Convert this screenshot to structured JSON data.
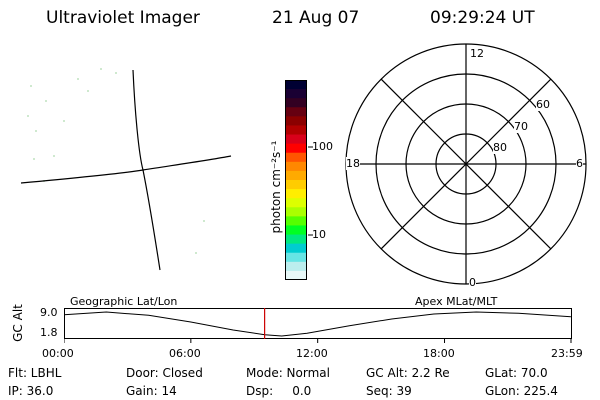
{
  "header": {
    "instrument": "Ultraviolet Imager",
    "date": "21 Aug 07",
    "time": "09:29:24 UT"
  },
  "colorbar": {
    "label": "photon cm⁻²s⁻¹",
    "tick_labels": [
      "100",
      "10"
    ],
    "colors": [
      "#000033",
      "#1a0033",
      "#330022",
      "#660011",
      "#8b0000",
      "#b20000",
      "#d9001a",
      "#ff0000",
      "#ff5500",
      "#ff8800",
      "#ffaa00",
      "#ffcc00",
      "#ffee00",
      "#ddff00",
      "#aaff00",
      "#55ff00",
      "#00ff22",
      "#00e880",
      "#00ccd0",
      "#66e5e5",
      "#bbeeee",
      "#e8f8f8"
    ]
  },
  "polar": {
    "mlt_labels": {
      "top": "12",
      "left": "18",
      "right": "6",
      "bottom": "0"
    },
    "lat_labels": [
      "60",
      "70",
      "80"
    ]
  },
  "altitude_panel": {
    "ylabel": "GC Alt",
    "yticks": [
      "9.0",
      "1.8"
    ],
    "left_label": "Geographic Lat/Lon",
    "right_label": "Apex MLat/MLT",
    "xticks": [
      "00:00",
      "06:00",
      "12:00",
      "18:00",
      "23:59"
    ],
    "current_time_hours": 9.49,
    "altitude_curve": [
      {
        "t": 0.0,
        "alt": 8.2
      },
      {
        "t": 2.0,
        "alt": 9.0
      },
      {
        "t": 4.0,
        "alt": 8.0
      },
      {
        "t": 6.0,
        "alt": 6.0
      },
      {
        "t": 8.0,
        "alt": 3.6
      },
      {
        "t": 9.5,
        "alt": 2.2
      },
      {
        "t": 10.3,
        "alt": 1.8
      },
      {
        "t": 11.5,
        "alt": 2.6
      },
      {
        "t": 13.5,
        "alt": 4.9
      },
      {
        "t": 15.5,
        "alt": 6.9
      },
      {
        "t": 17.5,
        "alt": 8.4
      },
      {
        "t": 19.5,
        "alt": 9.0
      },
      {
        "t": 21.5,
        "alt": 8.6
      },
      {
        "t": 23.98,
        "alt": 7.6
      }
    ]
  },
  "status": {
    "flt": "Flt: LBHL",
    "door": "Door: Closed",
    "mode": "Mode: Normal",
    "gcalt": "GC Alt: 2.2 Re",
    "glat": "GLat:  70.0",
    "ip": "IP: 36.0",
    "gain": "Gain: 14",
    "dsp": "Dsp:     0.0",
    "seq": "Seq: 39",
    "glon": "GLon: 225.4"
  }
}
